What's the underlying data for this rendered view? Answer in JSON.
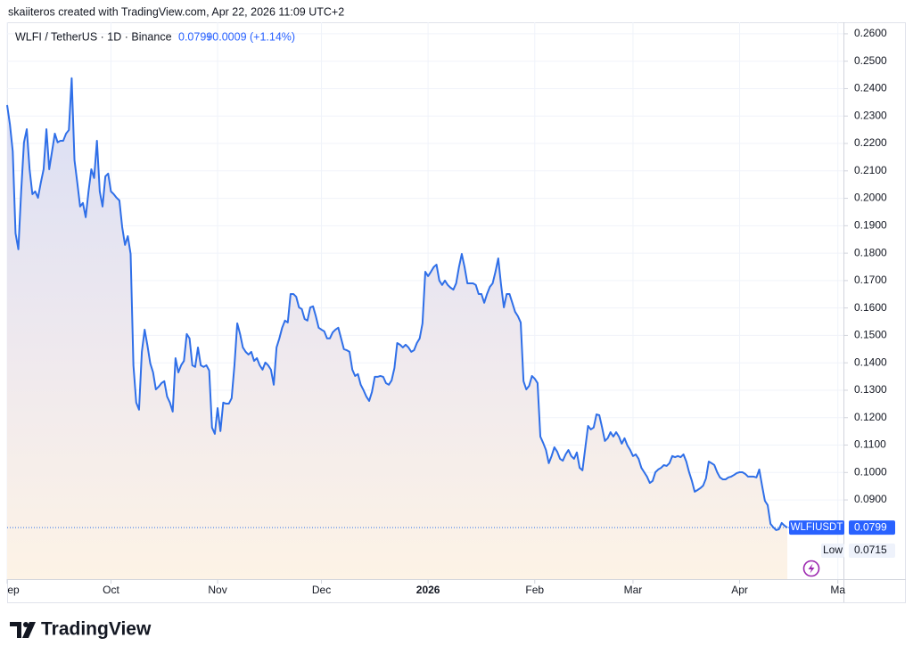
{
  "created": "skaiiteros created with TradingView.com, Apr 22, 2026 11:09 UTC+2",
  "symbol": "WLFI / TetherUS · 1D · Binance",
  "price": "0.0799",
  "change": "+0.0009 (+1.14%)",
  "logo": "TradingView",
  "chart_data": {
    "type": "line",
    "series": [
      {
        "name": "WLFIUSDT",
        "color": "#2f6fe8",
        "values": [
          0.234,
          0.2269,
          0.2171,
          0.1872,
          0.1814,
          0.2025,
          0.2204,
          0.2252,
          0.2106,
          0.2015,
          0.2025,
          0.2002,
          0.2057,
          0.2106,
          0.2252,
          0.2106,
          0.2171,
          0.2236,
          0.2204,
          0.221,
          0.221,
          0.2236,
          0.2249,
          0.2438,
          0.2139,
          0.2057,
          0.197,
          0.1983,
          0.1931,
          0.2025,
          0.2106,
          0.2074,
          0.221,
          0.2025,
          0.197,
          0.208,
          0.209,
          0.2025,
          0.2015,
          0.2002,
          0.1992,
          0.1895,
          0.183,
          0.1862,
          0.1797,
          0.1391,
          0.1255,
          0.1229,
          0.144,
          0.1521,
          0.1463,
          0.1398,
          0.1365,
          0.1303,
          0.1313,
          0.1326,
          0.1333,
          0.1277,
          0.1255,
          0.1222,
          0.1417,
          0.1365,
          0.1391,
          0.1407,
          0.1505,
          0.1489,
          0.1391,
          0.1385,
          0.1456,
          0.1391,
          0.1385,
          0.1391,
          0.1372,
          0.1164,
          0.1141,
          0.1235,
          0.1151,
          0.1255,
          0.1251,
          0.1251,
          0.1271,
          0.1391,
          0.1544,
          0.1505,
          0.1456,
          0.144,
          0.143,
          0.144,
          0.1407,
          0.1417,
          0.1391,
          0.1375,
          0.1401,
          0.1391,
          0.1375,
          0.132,
          0.1456,
          0.1489,
          0.1528,
          0.1554,
          0.1547,
          0.1651,
          0.1651,
          0.1641,
          0.1602,
          0.1596,
          0.156,
          0.1554,
          0.1602,
          0.1606,
          0.157,
          0.1528,
          0.1521,
          0.1515,
          0.1489,
          0.1489,
          0.1511,
          0.1521,
          0.1528,
          0.1489,
          0.145,
          0.1446,
          0.144,
          0.1375,
          0.1352,
          0.1359,
          0.132,
          0.13,
          0.1277,
          0.1261,
          0.1294,
          0.1349,
          0.1349,
          0.1352,
          0.1349,
          0.1326,
          0.132,
          0.1336,
          0.1381,
          0.1472,
          0.1466,
          0.1456,
          0.1466,
          0.1456,
          0.144,
          0.1446,
          0.1472,
          0.1489,
          0.1544,
          0.1732,
          0.1716,
          0.1732,
          0.1749,
          0.1758,
          0.17,
          0.1684,
          0.17,
          0.1684,
          0.1674,
          0.1667,
          0.169,
          0.1749,
          0.1797,
          0.1749,
          0.169,
          0.169,
          0.169,
          0.1684,
          0.1651,
          0.1651,
          0.1619,
          0.1651,
          0.1677,
          0.169,
          0.1732,
          0.1781,
          0.1684,
          0.1602,
          0.1651,
          0.1651,
          0.1619,
          0.1586,
          0.157,
          0.1547,
          0.1333,
          0.1303,
          0.1316,
          0.1352,
          0.1342,
          0.1326,
          0.1131,
          0.1108,
          0.1082,
          0.1034,
          0.106,
          0.1092,
          0.1076,
          0.105,
          0.1043,
          0.1066,
          0.1082,
          0.106,
          0.105,
          0.1073,
          0.1017,
          0.1008,
          0.1089,
          0.117,
          0.1157,
          0.1164,
          0.1212,
          0.1209,
          0.1164,
          0.1115,
          0.1125,
          0.1147,
          0.1131,
          0.1147,
          0.1131,
          0.1105,
          0.1125,
          0.1099,
          0.1082,
          0.106,
          0.1066,
          0.105,
          0.1017,
          0.1001,
          0.0985,
          0.0962,
          0.0969,
          0.1001,
          0.1011,
          0.1017,
          0.1027,
          0.1024,
          0.1034,
          0.106,
          0.1056,
          0.106,
          0.1056,
          0.1066,
          0.104,
          0.1001,
          0.0969,
          0.093,
          0.0936,
          0.0943,
          0.0952,
          0.0978,
          0.104,
          0.1034,
          0.1027,
          0.1001,
          0.0982,
          0.0975,
          0.0975,
          0.0982,
          0.0985,
          0.0991,
          0.0998,
          0.1001,
          0.1001,
          0.0995,
          0.0985,
          0.0985,
          0.0985,
          0.0982,
          0.1011,
          0.0952,
          0.0897,
          0.0881,
          0.0813,
          0.08,
          0.079,
          0.0793,
          0.0816,
          0.0806,
          0.0799
        ]
      }
    ],
    "last_price": 0.0799,
    "low": {
      "label": "Low",
      "value": 0.0715
    },
    "xlim": [
      0,
      298
    ],
    "xticks": [
      {
        "value": 0,
        "label": "ep"
      },
      {
        "value": 37,
        "label": "Oct"
      },
      {
        "value": 75,
        "label": "Nov"
      },
      {
        "value": 112,
        "label": "Dec"
      },
      {
        "value": 150,
        "label": "2026"
      },
      {
        "value": 188,
        "label": "Feb"
      },
      {
        "value": 223,
        "label": "Mar"
      },
      {
        "value": 261,
        "label": "Apr"
      },
      {
        "value": 296,
        "label": "Ma"
      }
    ],
    "ylim": [
      0.0611,
      0.2642
    ],
    "yticks": [
      {
        "value": 0.26,
        "label": "0.2600"
      },
      {
        "value": 0.25,
        "label": "0.2500"
      },
      {
        "value": 0.24,
        "label": "0.2400"
      },
      {
        "value": 0.23,
        "label": "0.2300"
      },
      {
        "value": 0.22,
        "label": "0.2200"
      },
      {
        "value": 0.21,
        "label": "0.2100"
      },
      {
        "value": 0.2,
        "label": "0.2000"
      },
      {
        "value": 0.19,
        "label": "0.1900"
      },
      {
        "value": 0.18,
        "label": "0.1800"
      },
      {
        "value": 0.17,
        "label": "0.1700"
      },
      {
        "value": 0.16,
        "label": "0.1600"
      },
      {
        "value": 0.15,
        "label": "0.1500"
      },
      {
        "value": 0.14,
        "label": "0.1400"
      },
      {
        "value": 0.13,
        "label": "0.1300"
      },
      {
        "value": 0.12,
        "label": "0.1200"
      },
      {
        "value": 0.11,
        "label": "0.1100"
      },
      {
        "value": 0.1,
        "label": "0.1000"
      },
      {
        "value": 0.09,
        "label": "0.0900"
      }
    ],
    "grid": true
  }
}
